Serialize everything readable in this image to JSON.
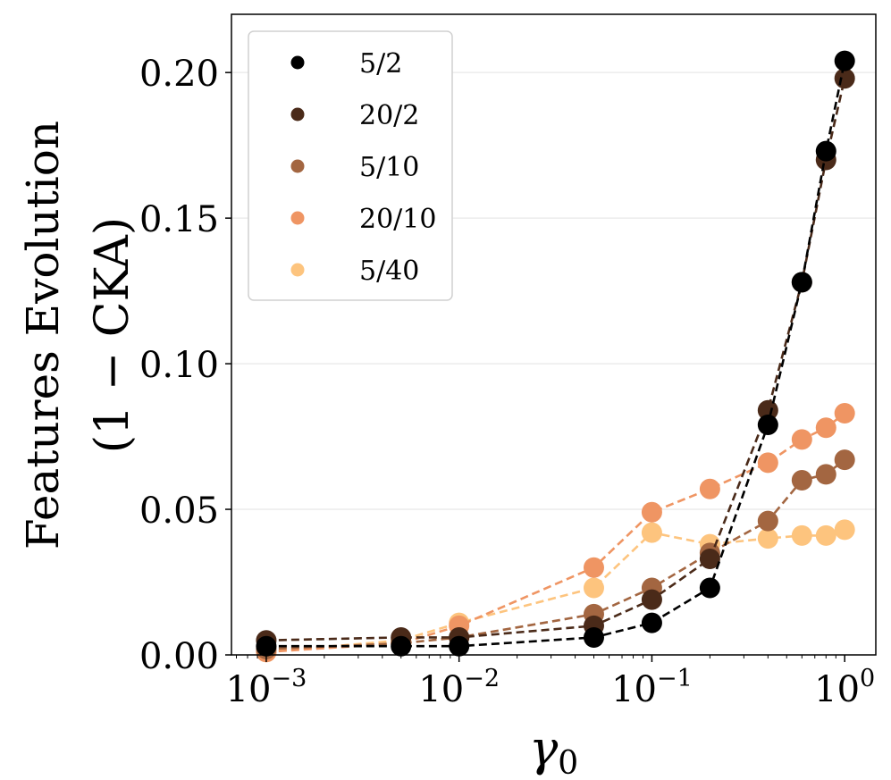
{
  "chart_data": {
    "type": "line",
    "xscale": "log",
    "xlim": [
      0.00066,
      1.45
    ],
    "ylim": [
      0,
      0.22
    ],
    "xlabel": "γ",
    "xlabel_sub": "0",
    "ylabel_line1": "Features Evolution",
    "ylabel_line2": "(1 − CKA)",
    "x": [
      0.001,
      0.005,
      0.01,
      0.05,
      0.1,
      0.2,
      0.4,
      0.6,
      0.8,
      1.0
    ],
    "x_ticks": [
      {
        "value": 0.001,
        "base": "10",
        "exp": "−3"
      },
      {
        "value": 0.01,
        "base": "10",
        "exp": "−2"
      },
      {
        "value": 0.1,
        "base": "10",
        "exp": "−1"
      },
      {
        "value": 1,
        "base": "10",
        "exp": "0"
      }
    ],
    "y_ticks": [
      {
        "value": 0.0,
        "label": "0.00"
      },
      {
        "value": 0.05,
        "label": "0.05"
      },
      {
        "value": 0.1,
        "label": "0.10"
      },
      {
        "value": 0.15,
        "label": "0.15"
      },
      {
        "value": 0.2,
        "label": "0.20"
      }
    ],
    "grid": "horizontal",
    "legend_position": "top-left",
    "series": [
      {
        "name": "5/40",
        "color": "#fdc47e",
        "values": [
          0.001,
          0.005,
          0.011,
          0.023,
          0.042,
          0.038,
          0.04,
          0.041,
          0.041,
          0.043
        ]
      },
      {
        "name": "20/10",
        "color": "#ef9563",
        "values": [
          0.001,
          0.004,
          0.01,
          0.03,
          0.049,
          0.057,
          0.066,
          0.074,
          0.078,
          0.083
        ]
      },
      {
        "name": "5/10",
        "color": "#a36641",
        "values": [
          0.002,
          0.004,
          0.006,
          0.014,
          0.023,
          0.035,
          0.046,
          0.06,
          0.062,
          0.067
        ]
      },
      {
        "name": "20/2",
        "color": "#4a2a19",
        "values": [
          0.005,
          0.006,
          0.006,
          0.01,
          0.019,
          0.033,
          0.084,
          0.128,
          0.17,
          0.198
        ]
      },
      {
        "name": "5/2",
        "color": "#000000",
        "values": [
          0.003,
          0.003,
          0.003,
          0.006,
          0.011,
          0.023,
          0.079,
          0.128,
          0.173,
          0.204
        ]
      }
    ],
    "legend_order": [
      "5/2",
      "20/2",
      "5/10",
      "20/10",
      "5/40"
    ]
  }
}
